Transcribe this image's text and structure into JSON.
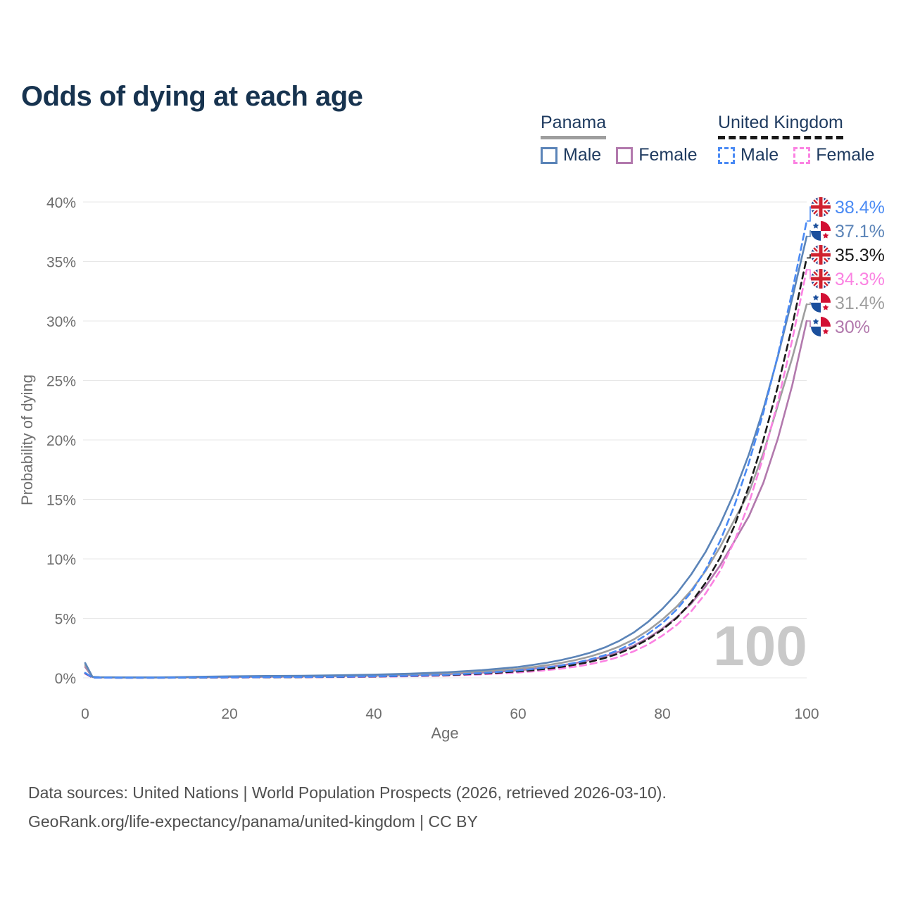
{
  "title": "Odds of dying at each age",
  "watermark": "100",
  "legend": {
    "groups": [
      {
        "name": "Panama",
        "underline": {
          "color": "#9e9e9e",
          "dashed": false
        },
        "items": [
          {
            "label": "Male",
            "color": "#5b84b8",
            "dashed": false
          },
          {
            "label": "Female",
            "color": "#b279ad",
            "dashed": false
          }
        ]
      },
      {
        "name": "United Kingdom",
        "underline": {
          "color": "#1a1a1a",
          "dashed": true
        },
        "items": [
          {
            "label": "Male",
            "color": "#4a8af4",
            "dashed": true
          },
          {
            "label": "Female",
            "color": "#fb82e2",
            "dashed": true
          }
        ]
      }
    ]
  },
  "footer": {
    "line1": "Data sources: United Nations | World Population Prospects (2026, retrieved 2026-03-10).",
    "line2": "GeoRank.org/life-expectancy/panama/united-kingdom | CC BY"
  },
  "chart_data": {
    "type": "line",
    "title": "Odds of dying at each age",
    "xlabel": "Age",
    "ylabel": "Probability of dying",
    "xlim": [
      0,
      100
    ],
    "ylim": [
      0,
      40
    ],
    "x_ticks": [
      0,
      20,
      40,
      60,
      80,
      100
    ],
    "y_ticks": [
      0,
      5,
      10,
      15,
      20,
      25,
      30,
      35,
      40
    ],
    "grid": true,
    "legend_position": "top-right",
    "age_indicator": "100",
    "series": [
      {
        "name": "United Kingdom Male",
        "color": "#4a8af4",
        "dashed": true,
        "flag": "uk",
        "end_label": "38.4%",
        "end_value": 38.4,
        "points": [
          [
            0,
            0.42
          ],
          [
            1,
            0.03
          ],
          [
            2,
            0.02
          ],
          [
            5,
            0.01
          ],
          [
            10,
            0.01
          ],
          [
            15,
            0.03
          ],
          [
            20,
            0.05
          ],
          [
            25,
            0.06
          ],
          [
            30,
            0.07
          ],
          [
            35,
            0.09
          ],
          [
            40,
            0.13
          ],
          [
            45,
            0.18
          ],
          [
            50,
            0.26
          ],
          [
            55,
            0.4
          ],
          [
            60,
            0.62
          ],
          [
            62,
            0.74
          ],
          [
            64,
            0.88
          ],
          [
            66,
            1.05
          ],
          [
            68,
            1.27
          ],
          [
            70,
            1.55
          ],
          [
            72,
            1.9
          ],
          [
            74,
            2.35
          ],
          [
            76,
            2.95
          ],
          [
            78,
            3.7
          ],
          [
            80,
            4.6
          ],
          [
            82,
            5.75
          ],
          [
            84,
            7.2
          ],
          [
            86,
            9.1
          ],
          [
            88,
            11.5
          ],
          [
            90,
            14.5
          ],
          [
            92,
            18.1
          ],
          [
            94,
            22.3
          ],
          [
            96,
            27.1
          ],
          [
            98,
            32.5
          ],
          [
            100,
            38.4
          ]
        ]
      },
      {
        "name": "Panama Male",
        "color": "#5b84b8",
        "dashed": false,
        "flag": "panama",
        "end_label": "37.1%",
        "end_value": 37.1,
        "points": [
          [
            0,
            1.25
          ],
          [
            1,
            0.09
          ],
          [
            2,
            0.06
          ],
          [
            5,
            0.04
          ],
          [
            10,
            0.04
          ],
          [
            15,
            0.08
          ],
          [
            20,
            0.13
          ],
          [
            25,
            0.16
          ],
          [
            30,
            0.18
          ],
          [
            35,
            0.22
          ],
          [
            40,
            0.27
          ],
          [
            45,
            0.35
          ],
          [
            50,
            0.47
          ],
          [
            55,
            0.65
          ],
          [
            60,
            0.92
          ],
          [
            62,
            1.08
          ],
          [
            64,
            1.27
          ],
          [
            66,
            1.5
          ],
          [
            68,
            1.78
          ],
          [
            70,
            2.12
          ],
          [
            72,
            2.55
          ],
          [
            74,
            3.1
          ],
          [
            76,
            3.8
          ],
          [
            78,
            4.7
          ],
          [
            80,
            5.8
          ],
          [
            82,
            7.1
          ],
          [
            84,
            8.7
          ],
          [
            86,
            10.6
          ],
          [
            88,
            12.9
          ],
          [
            90,
            15.6
          ],
          [
            92,
            18.8
          ],
          [
            94,
            22.6
          ],
          [
            96,
            27.0
          ],
          [
            98,
            31.9
          ],
          [
            100,
            37.1
          ]
        ]
      },
      {
        "name": "United Kingdom Both sexes",
        "color": "#1a1a1a",
        "dashed": true,
        "flag": "uk",
        "end_label": "35.3%",
        "end_value": 35.3,
        "points": [
          [
            0,
            0.39
          ],
          [
            1,
            0.03
          ],
          [
            2,
            0.02
          ],
          [
            5,
            0.01
          ],
          [
            10,
            0.01
          ],
          [
            15,
            0.02
          ],
          [
            20,
            0.04
          ],
          [
            25,
            0.05
          ],
          [
            30,
            0.06
          ],
          [
            35,
            0.08
          ],
          [
            40,
            0.11
          ],
          [
            45,
            0.16
          ],
          [
            50,
            0.23
          ],
          [
            55,
            0.35
          ],
          [
            60,
            0.54
          ],
          [
            62,
            0.64
          ],
          [
            64,
            0.77
          ],
          [
            66,
            0.92
          ],
          [
            68,
            1.11
          ],
          [
            70,
            1.35
          ],
          [
            72,
            1.66
          ],
          [
            74,
            2.06
          ],
          [
            76,
            2.58
          ],
          [
            78,
            3.24
          ],
          [
            80,
            4.05
          ],
          [
            82,
            5.05
          ],
          [
            84,
            6.35
          ],
          [
            86,
            8.0
          ],
          [
            88,
            10.1
          ],
          [
            90,
            12.8
          ],
          [
            92,
            16.1
          ],
          [
            94,
            20.0
          ],
          [
            96,
            24.5
          ],
          [
            98,
            29.6
          ],
          [
            100,
            35.3
          ]
        ]
      },
      {
        "name": "United Kingdom Female",
        "color": "#fb82e2",
        "dashed": true,
        "flag": "uk",
        "end_label": "34.3%",
        "end_value": 34.3,
        "points": [
          [
            0,
            0.35
          ],
          [
            1,
            0.02
          ],
          [
            2,
            0.01
          ],
          [
            5,
            0.01
          ],
          [
            10,
            0.01
          ],
          [
            15,
            0.02
          ],
          [
            20,
            0.03
          ],
          [
            25,
            0.04
          ],
          [
            30,
            0.05
          ],
          [
            35,
            0.06
          ],
          [
            40,
            0.09
          ],
          [
            45,
            0.13
          ],
          [
            50,
            0.19
          ],
          [
            55,
            0.29
          ],
          [
            60,
            0.45
          ],
          [
            62,
            0.54
          ],
          [
            64,
            0.65
          ],
          [
            66,
            0.78
          ],
          [
            68,
            0.94
          ],
          [
            70,
            1.15
          ],
          [
            72,
            1.42
          ],
          [
            74,
            1.77
          ],
          [
            76,
            2.22
          ],
          [
            78,
            2.8
          ],
          [
            80,
            3.55
          ],
          [
            82,
            4.45
          ],
          [
            84,
            5.6
          ],
          [
            86,
            7.1
          ],
          [
            88,
            9.0
          ],
          [
            90,
            11.5
          ],
          [
            92,
            14.7
          ],
          [
            94,
            18.6
          ],
          [
            96,
            23.2
          ],
          [
            98,
            28.4
          ],
          [
            100,
            34.3
          ]
        ]
      },
      {
        "name": "Panama Both sexes",
        "color": "#9e9e9e",
        "dashed": false,
        "flag": "panama",
        "end_label": "31.4%",
        "end_value": 31.4,
        "points": [
          [
            0,
            1.08
          ],
          [
            1,
            0.08
          ],
          [
            2,
            0.05
          ],
          [
            5,
            0.03
          ],
          [
            10,
            0.03
          ],
          [
            15,
            0.06
          ],
          [
            20,
            0.1
          ],
          [
            25,
            0.12
          ],
          [
            30,
            0.14
          ],
          [
            35,
            0.17
          ],
          [
            40,
            0.22
          ],
          [
            45,
            0.28
          ],
          [
            50,
            0.38
          ],
          [
            55,
            0.53
          ],
          [
            60,
            0.76
          ],
          [
            62,
            0.9
          ],
          [
            64,
            1.06
          ],
          [
            66,
            1.26
          ],
          [
            68,
            1.5
          ],
          [
            70,
            1.8
          ],
          [
            72,
            2.17
          ],
          [
            74,
            2.63
          ],
          [
            76,
            3.22
          ],
          [
            78,
            3.97
          ],
          [
            80,
            4.9
          ],
          [
            82,
            6.0
          ],
          [
            84,
            7.35
          ],
          [
            86,
            9.0
          ],
          [
            88,
            11.0
          ],
          [
            90,
            13.3
          ],
          [
            92,
            15.6
          ],
          [
            94,
            18.9
          ],
          [
            96,
            22.9
          ],
          [
            98,
            26.9
          ],
          [
            100,
            31.4
          ]
        ]
      },
      {
        "name": "Panama Female",
        "color": "#b279ad",
        "dashed": false,
        "flag": "panama",
        "end_label": "30%",
        "end_value": 30,
        "points": [
          [
            0,
            0.92
          ],
          [
            1,
            0.07
          ],
          [
            2,
            0.04
          ],
          [
            5,
            0.03
          ],
          [
            10,
            0.03
          ],
          [
            15,
            0.04
          ],
          [
            20,
            0.07
          ],
          [
            25,
            0.09
          ],
          [
            30,
            0.11
          ],
          [
            35,
            0.14
          ],
          [
            40,
            0.18
          ],
          [
            45,
            0.23
          ],
          [
            50,
            0.31
          ],
          [
            55,
            0.44
          ],
          [
            60,
            0.63
          ],
          [
            62,
            0.75
          ],
          [
            64,
            0.88
          ],
          [
            66,
            1.05
          ],
          [
            68,
            1.25
          ],
          [
            70,
            1.5
          ],
          [
            72,
            1.81
          ],
          [
            74,
            2.2
          ],
          [
            76,
            2.7
          ],
          [
            78,
            3.35
          ],
          [
            80,
            4.15
          ],
          [
            82,
            5.1
          ],
          [
            84,
            6.25
          ],
          [
            86,
            7.7
          ],
          [
            88,
            9.45
          ],
          [
            90,
            11.5
          ],
          [
            92,
            13.6
          ],
          [
            94,
            16.4
          ],
          [
            96,
            20.1
          ],
          [
            98,
            24.6
          ],
          [
            100,
            30.0
          ]
        ]
      }
    ]
  }
}
